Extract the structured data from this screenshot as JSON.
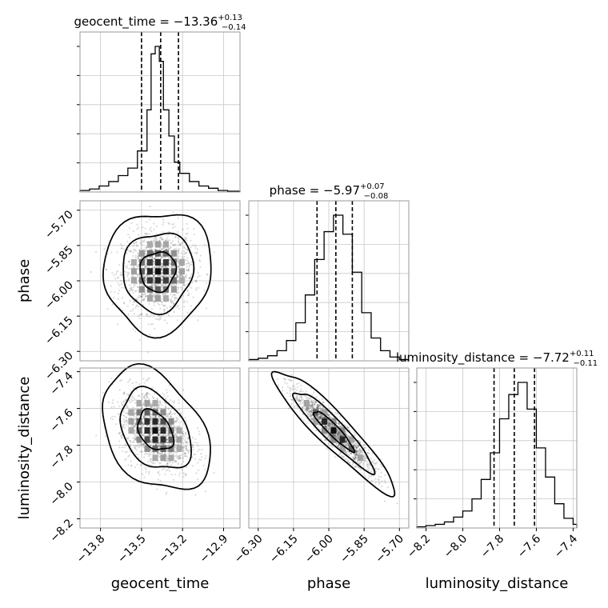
{
  "chart_data": {
    "type": "corner",
    "parameters": [
      {
        "name": "geocent_time",
        "title_text": "geocent_time = −13.36",
        "title_sup": "+0.13",
        "title_sub": "−0.14",
        "range": [
          -13.95,
          -12.78
        ],
        "ticks": [
          -13.8,
          -13.5,
          -13.2,
          -12.9
        ],
        "tick_labels": [
          "−13.8",
          "−13.5",
          "−13.2",
          "−12.9"
        ],
        "quantiles": [
          -13.5,
          -13.36,
          -13.23
        ],
        "histogram": {
          "edges": [
            -13.95,
            -13.88,
            -13.81,
            -13.74,
            -13.67,
            -13.6,
            -13.53,
            -13.46,
            -13.43,
            -13.4,
            -13.37,
            -13.34,
            -13.3,
            -13.26,
            -13.22,
            -13.15,
            -13.08,
            -13.01,
            -12.94,
            -12.87,
            -12.78
          ],
          "counts": [
            2,
            4,
            8,
            14,
            22,
            32,
            55,
            110,
            185,
            195,
            175,
            110,
            75,
            40,
            25,
            14,
            8,
            5,
            2,
            1
          ]
        }
      },
      {
        "name": "phase",
        "title_text": "phase = −5.97",
        "title_sup": "+0.07",
        "title_sub": "−0.08",
        "range": [
          -6.34,
          -5.66
        ],
        "ticks": [
          -6.3,
          -6.15,
          -6.0,
          -5.85,
          -5.7
        ],
        "tick_labels": [
          "−6.30",
          "−6.15",
          "−6.00",
          "−5.85",
          "−5.70"
        ],
        "quantiles": [
          -6.05,
          -5.97,
          -5.9
        ],
        "histogram": {
          "edges": [
            -6.34,
            -6.3,
            -6.26,
            -6.22,
            -6.18,
            -6.14,
            -6.1,
            -6.06,
            -6.02,
            -5.98,
            -5.94,
            -5.9,
            -5.86,
            -5.82,
            -5.78,
            -5.74,
            -5.7,
            -5.66
          ],
          "counts": [
            1,
            2,
            4,
            8,
            16,
            30,
            52,
            80,
            102,
            115,
            100,
            70,
            38,
            18,
            8,
            3,
            1
          ]
        }
      },
      {
        "name": "luminosity_distance",
        "title_text": "luminosity_distance = −7.72",
        "title_sup": "+0.11",
        "title_sub": "−0.11",
        "range": [
          -8.25,
          -7.38
        ],
        "ticks": [
          -8.2,
          -8.0,
          -7.8,
          -7.6,
          -7.4
        ],
        "tick_labels": [
          "−8.2",
          "−8.0",
          "−7.8",
          "−7.6",
          "−7.4"
        ],
        "quantiles": [
          -7.83,
          -7.72,
          -7.61
        ],
        "histogram": {
          "edges": [
            -8.25,
            -8.2,
            -8.15,
            -8.1,
            -8.05,
            -8.0,
            -7.95,
            -7.9,
            -7.85,
            -7.8,
            -7.75,
            -7.7,
            -7.65,
            -7.6,
            -7.55,
            -7.5,
            -7.45,
            -7.4,
            -7.38
          ],
          "counts": [
            1,
            2,
            3,
            5,
            9,
            14,
            24,
            40,
            62,
            90,
            110,
            120,
            98,
            66,
            42,
            20,
            8,
            3
          ]
        }
      }
    ],
    "pairs": [
      {
        "x": 0,
        "y": 1,
        "center": [
          -13.38,
          -5.96
        ],
        "sigma": [
          0.13,
          0.085
        ],
        "rho": 0.05,
        "n_points": 1500
      },
      {
        "x": 0,
        "y": 2,
        "center": [
          -13.4,
          -7.72
        ],
        "sigma": [
          0.13,
          0.11
        ],
        "rho": -0.35,
        "n_points": 1500
      },
      {
        "x": 1,
        "y": 2,
        "center": [
          -5.98,
          -7.72
        ],
        "sigma": [
          0.085,
          0.11
        ],
        "rho": -0.93,
        "n_points": 1500
      }
    ],
    "contour_levels": [
      0.39,
      0.86,
      0.99
    ],
    "grid": true
  }
}
